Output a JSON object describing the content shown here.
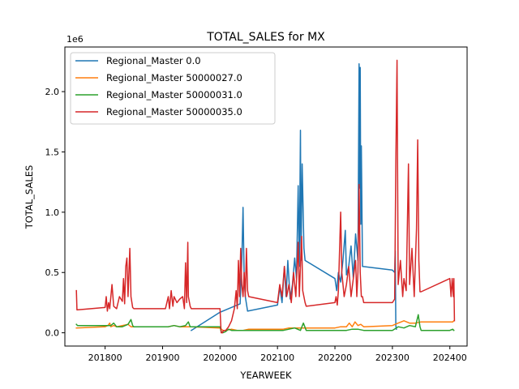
{
  "chart_data": {
    "type": "line",
    "title": "TOTAL_SALES for MX",
    "xlabel": "YEARWEEK",
    "ylabel": "TOTAL_SALES",
    "y_offset_label": "1e6",
    "xlim": [
      201730,
      202430
    ],
    "ylim": [
      -0.11,
      2.37
    ],
    "x_ticks": [
      201800,
      201900,
      202000,
      202100,
      202200,
      202300,
      202400
    ],
    "y_ticks": [
      0.0,
      0.5,
      1.0,
      1.5,
      2.0
    ],
    "y_tick_labels": [
      "0.0",
      "0.5",
      "1.0",
      "1.5",
      "2.0"
    ],
    "grid": false,
    "legend_position": "top-left",
    "series": [
      {
        "name": "Regional_Master 0.0",
        "color": "#1f77b4",
        "points": [
          [
            201950,
            0.02
          ],
          [
            202000,
            0.17
          ],
          [
            202035,
            0.24
          ],
          [
            202038,
            0.6
          ],
          [
            202040,
            1.04
          ],
          [
            202042,
            0.45
          ],
          [
            202044,
            0.3
          ],
          [
            202048,
            0.18
          ],
          [
            202100,
            0.23
          ],
          [
            202104,
            0.38
          ],
          [
            202108,
            0.25
          ],
          [
            202112,
            0.55
          ],
          [
            202115,
            0.3
          ],
          [
            202118,
            0.6
          ],
          [
            202122,
            0.28
          ],
          [
            202126,
            0.4
          ],
          [
            202130,
            0.62
          ],
          [
            202133,
            0.45
          ],
          [
            202136,
            1.22
          ],
          [
            202138,
            0.55
          ],
          [
            202140,
            1.68
          ],
          [
            202141,
            0.6
          ],
          [
            202143,
            1.4
          ],
          [
            202146,
            0.7
          ],
          [
            202148,
            0.6
          ],
          [
            202200,
            0.45
          ],
          [
            202203,
            0.35
          ],
          [
            202206,
            0.5
          ],
          [
            202210,
            0.42
          ],
          [
            202214,
            0.6
          ],
          [
            202218,
            0.85
          ],
          [
            202220,
            0.48
          ],
          [
            202224,
            0.55
          ],
          [
            202228,
            0.72
          ],
          [
            202232,
            0.45
          ],
          [
            202236,
            0.82
          ],
          [
            202240,
            0.6
          ],
          [
            202242,
            2.23
          ],
          [
            202243,
            1.2
          ],
          [
            202244,
            2.2
          ],
          [
            202245,
            0.9
          ],
          [
            202246,
            1.55
          ],
          [
            202248,
            0.55
          ],
          [
            202300,
            0.52
          ],
          [
            202304,
            0.5
          ],
          [
            202305,
            0.68
          ],
          [
            202306,
            0.06
          ],
          [
            202307,
            0.03
          ]
        ]
      },
      {
        "name": "Regional_Master 50000027.0",
        "color": "#ff7f0e",
        "points": [
          [
            201750,
            0.04
          ],
          [
            201800,
            0.05
          ],
          [
            201805,
            0.06
          ],
          [
            201808,
            0.08
          ],
          [
            201810,
            0.05
          ],
          [
            201815,
            0.06
          ],
          [
            201820,
            0.05
          ],
          [
            201830,
            0.06
          ],
          [
            201840,
            0.07
          ],
          [
            201845,
            0.05
          ],
          [
            201850,
            0.05
          ],
          [
            201900,
            0.05
          ],
          [
            201910,
            0.05
          ],
          [
            201920,
            0.06
          ],
          [
            201930,
            0.05
          ],
          [
            201940,
            0.05
          ],
          [
            201950,
            0.05
          ],
          [
            202000,
            0.04
          ],
          [
            202005,
            0.02
          ],
          [
            202010,
            0.02
          ],
          [
            202020,
            0.03
          ],
          [
            202030,
            0.02
          ],
          [
            202040,
            0.02
          ],
          [
            202050,
            0.03
          ],
          [
            202100,
            0.03
          ],
          [
            202110,
            0.03
          ],
          [
            202120,
            0.04
          ],
          [
            202130,
            0.04
          ],
          [
            202140,
            0.04
          ],
          [
            202150,
            0.04
          ],
          [
            202200,
            0.04
          ],
          [
            202210,
            0.05
          ],
          [
            202220,
            0.05
          ],
          [
            202225,
            0.08
          ],
          [
            202230,
            0.05
          ],
          [
            202235,
            0.09
          ],
          [
            202240,
            0.06
          ],
          [
            202245,
            0.07
          ],
          [
            202250,
            0.05
          ],
          [
            202300,
            0.06
          ],
          [
            202310,
            0.08
          ],
          [
            202320,
            0.1
          ],
          [
            202330,
            0.08
          ],
          [
            202340,
            0.08
          ],
          [
            202350,
            0.09
          ],
          [
            202400,
            0.09
          ],
          [
            202405,
            0.09
          ],
          [
            202407,
            0.1
          ]
        ]
      },
      {
        "name": "Regional_Master 50000031.0",
        "color": "#2ca02c",
        "points": [
          [
            201750,
            0.07
          ],
          [
            201752,
            0.06
          ],
          [
            201800,
            0.06
          ],
          [
            201810,
            0.06
          ],
          [
            201815,
            0.08
          ],
          [
            201820,
            0.05
          ],
          [
            201830,
            0.05
          ],
          [
            201840,
            0.07
          ],
          [
            201845,
            0.11
          ],
          [
            201848,
            0.06
          ],
          [
            201850,
            0.05
          ],
          [
            201900,
            0.05
          ],
          [
            201910,
            0.05
          ],
          [
            201920,
            0.06
          ],
          [
            201930,
            0.05
          ],
          [
            201940,
            0.06
          ],
          [
            201945,
            0.09
          ],
          [
            201948,
            0.05
          ],
          [
            201950,
            0.05
          ],
          [
            202000,
            0.05
          ],
          [
            202002,
            0.01
          ],
          [
            202005,
            0.0
          ],
          [
            202010,
            0.01
          ],
          [
            202015,
            0.03
          ],
          [
            202020,
            0.02
          ],
          [
            202030,
            0.02
          ],
          [
            202040,
            0.02
          ],
          [
            202050,
            0.02
          ],
          [
            202100,
            0.02
          ],
          [
            202110,
            0.02
          ],
          [
            202120,
            0.03
          ],
          [
            202130,
            0.04
          ],
          [
            202140,
            0.02
          ],
          [
            202145,
            0.08
          ],
          [
            202150,
            0.02
          ],
          [
            202200,
            0.02
          ],
          [
            202210,
            0.02
          ],
          [
            202220,
            0.02
          ],
          [
            202230,
            0.03
          ],
          [
            202240,
            0.03
          ],
          [
            202250,
            0.02
          ],
          [
            202300,
            0.02
          ],
          [
            202310,
            0.05
          ],
          [
            202320,
            0.04
          ],
          [
            202330,
            0.06
          ],
          [
            202340,
            0.05
          ],
          [
            202345,
            0.15
          ],
          [
            202348,
            0.05
          ],
          [
            202350,
            0.02
          ],
          [
            202400,
            0.02
          ],
          [
            202405,
            0.03
          ],
          [
            202407,
            0.02
          ]
        ]
      },
      {
        "name": "Regional_Master 50000035.0",
        "color": "#d62728",
        "points": [
          [
            201750,
            0.35
          ],
          [
            201751,
            0.19
          ],
          [
            201800,
            0.21
          ],
          [
            201802,
            0.3
          ],
          [
            201804,
            0.18
          ],
          [
            201806,
            0.25
          ],
          [
            201808,
            0.2
          ],
          [
            201812,
            0.4
          ],
          [
            201815,
            0.22
          ],
          [
            201820,
            0.2
          ],
          [
            201825,
            0.3
          ],
          [
            201830,
            0.26
          ],
          [
            201832,
            0.45
          ],
          [
            201834,
            0.24
          ],
          [
            201836,
            0.55
          ],
          [
            201838,
            0.62
          ],
          [
            201840,
            0.3
          ],
          [
            201843,
            0.7
          ],
          [
            201845,
            0.3
          ],
          [
            201848,
            0.21
          ],
          [
            201850,
            0.2
          ],
          [
            201905,
            0.2
          ],
          [
            201910,
            0.3
          ],
          [
            201912,
            0.2
          ],
          [
            201915,
            0.35
          ],
          [
            201918,
            0.22
          ],
          [
            201920,
            0.3
          ],
          [
            201925,
            0.25
          ],
          [
            201930,
            0.28
          ],
          [
            201935,
            0.3
          ],
          [
            201938,
            0.2
          ],
          [
            201940,
            0.58
          ],
          [
            201942,
            0.25
          ],
          [
            201944,
            0.75
          ],
          [
            201945,
            0.3
          ],
          [
            201948,
            0.22
          ],
          [
            201950,
            0.2
          ],
          [
            202000,
            0.2
          ],
          [
            202002,
            0.0
          ],
          [
            202004,
            0.0
          ],
          [
            202006,
            0.02
          ],
          [
            202010,
            0.02
          ],
          [
            202015,
            0.05
          ],
          [
            202020,
            0.1
          ],
          [
            202025,
            0.2
          ],
          [
            202028,
            0.35
          ],
          [
            202030,
            0.2
          ],
          [
            202032,
            0.6
          ],
          [
            202034,
            0.3
          ],
          [
            202036,
            0.7
          ],
          [
            202038,
            0.4
          ],
          [
            202040,
            0.3
          ],
          [
            202042,
            0.5
          ],
          [
            202044,
            0.3
          ],
          [
            202046,
            0.7
          ],
          [
            202048,
            0.35
          ],
          [
            202050,
            0.3
          ],
          [
            202100,
            0.25
          ],
          [
            202104,
            0.4
          ],
          [
            202108,
            0.3
          ],
          [
            202112,
            0.55
          ],
          [
            202116,
            0.3
          ],
          [
            202120,
            0.4
          ],
          [
            202124,
            0.25
          ],
          [
            202128,
            0.5
          ],
          [
            202132,
            0.3
          ],
          [
            202136,
            0.75
          ],
          [
            202138,
            0.3
          ],
          [
            202142,
            0.8
          ],
          [
            202144,
            0.35
          ],
          [
            202148,
            0.25
          ],
          [
            202150,
            0.22
          ],
          [
            202200,
            0.25
          ],
          [
            202202,
            0.3
          ],
          [
            202204,
            0.23
          ],
          [
            202206,
            0.35
          ],
          [
            202210,
            1.0
          ],
          [
            202212,
            0.5
          ],
          [
            202216,
            0.3
          ],
          [
            202220,
            0.4
          ],
          [
            202224,
            0.55
          ],
          [
            202228,
            0.3
          ],
          [
            202232,
            0.45
          ],
          [
            202236,
            0.6
          ],
          [
            202238,
            0.3
          ],
          [
            202240,
            0.5
          ],
          [
            202242,
            1.23
          ],
          [
            202244,
            0.5
          ],
          [
            202246,
            0.3
          ],
          [
            202248,
            0.3
          ],
          [
            202250,
            0.25
          ],
          [
            202300,
            0.25
          ],
          [
            202304,
            0.28
          ],
          [
            202306,
            1.4
          ],
          [
            202308,
            2.26
          ],
          [
            202310,
            0.4
          ],
          [
            202314,
            0.6
          ],
          [
            202318,
            0.3
          ],
          [
            202320,
            0.45
          ],
          [
            202324,
            0.35
          ],
          [
            202328,
            1.4
          ],
          [
            202330,
            0.4
          ],
          [
            202334,
            0.7
          ],
          [
            202338,
            0.3
          ],
          [
            202342,
            0.86
          ],
          [
            202344,
            1.6
          ],
          [
            202346,
            0.6
          ],
          [
            202348,
            0.34
          ],
          [
            202350,
            0.34
          ],
          [
            202400,
            0.45
          ],
          [
            202402,
            0.3
          ],
          [
            202404,
            0.45
          ],
          [
            202406,
            0.3
          ],
          [
            202407,
            0.45
          ],
          [
            202408,
            0.1
          ]
        ]
      }
    ]
  }
}
